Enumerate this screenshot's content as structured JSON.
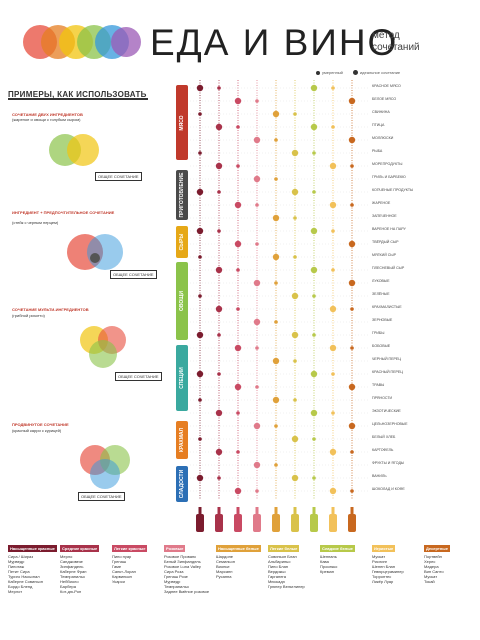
{
  "header": {
    "title": "ЕДА И ВИНО",
    "subtitle_line1": "метод",
    "subtitle_line2": "сочетаний",
    "logo_colors": [
      "#e74c3c",
      "#e67e22",
      "#f1c40f",
      "#8bc34a",
      "#3498db",
      "#9b59b6"
    ]
  },
  "legend": {
    "dot_small": "умеренный",
    "dot_big": "идеальное сочетание"
  },
  "examples": {
    "heading": "ПРИМЕРЫ, КАК ИСПОЛЬЗОВАТЬ",
    "ex1_title": "СОЧЕТАНИЕ ДВУХ ИНГРЕДИЕНТОВ",
    "ex1_sub": "(жареное и овощи с голубым сыром)",
    "ex1_box": "ОБЩЕЕ СОЧЕТАНИЕ",
    "ex2_title": "ИНГРЕДИЕНТ + ПРЕДПОЧТИТЕЛЬНОЕ СОЧЕТАНИЕ",
    "ex2_sub": "(стейк с черным перцем)",
    "ex2_box": "ОБЩЕЕ СОЧЕТАНИЕ",
    "ex3_title": "СОЧЕТАНИЕ МУЛЬТИ-ИНГРЕДИЕНТОВ",
    "ex3_sub": "(грибной ризотто)",
    "ex3_box": "ОБЩЕЕ СОЧЕТАНИЕ",
    "ex4_title": "ПРОДВИНУТОЕ СОЧЕТАНИЕ",
    "ex4_sub": "(красный карри с курицей)",
    "ex4_box": "ОБЩЕЕ СОЧЕТАНИЕ"
  },
  "categories": [
    {
      "label": "МЯСО",
      "color": "#c0392b"
    },
    {
      "label": "ПРИГОТОВЛЕНИЕ",
      "color": "#4a4a4a"
    },
    {
      "label": "СЫРЫ",
      "color": "#e6a817"
    },
    {
      "label": "ОВОЩИ",
      "color": "#8bc34a"
    },
    {
      "label": "СПЕЦИИ",
      "color": "#3aa99f"
    },
    {
      "label": "КРАХМАЛ",
      "color": "#e67e22"
    },
    {
      "label": "СЛАДОСТИ",
      "color": "#2c6fb5"
    }
  ],
  "rows": [
    "КРАСНОЕ МЯСО",
    "БЕЛОЕ МЯСО",
    "СВИНИНА",
    "ПТИЦА",
    "МОЛЛЮСКИ",
    "РЫБА",
    "МОРЕПРОДУКТЫ",
    "ГРИЛЬ И БАРБЕКЮ",
    "КОПЧЕНЫЕ ПРОДУКТЫ",
    "ЖАРЕНОЕ",
    "ЗАПЕЧЕННОЕ",
    "ВАРЕНОЕ НА ПАРУ",
    "ТВЁРДЫЙ СЫР",
    "МЯГКИЙ СЫР",
    "ПЛЕСНЕВЫЙ СЫР",
    "ЛУКОВЫЕ",
    "ЗЕЛЁНЫЕ",
    "КРАХМАЛИСТЫЕ",
    "ЗЕРНОВЫЕ",
    "ГРИБЫ",
    "БОБОВЫЕ",
    "ЧЕРНЫЙ ПЕРЕЦ",
    "КРАСНЫЙ ПЕРЕЦ",
    "ТРАВЫ",
    "ПРЯНОСТИ",
    "ЭКЗОТИЧЕСКИЕ",
    "ЦЕЛЬНОЗЕРНОВЫЕ",
    "БЕЛЫЙ ХЛЕБ",
    "КАРТОФЕЛЬ",
    "ФРУКТЫ И ЯГОДЫ",
    "ВАНИЛЬ",
    "ШОКОЛАД И КОФЕ"
  ],
  "wine_types": [
    {
      "name": "Насыщенные красные",
      "color": "#7b1c2e",
      "items": [
        "Сира / Шираз",
        "Мурведр",
        "Пинотаж",
        "Петит Сира",
        "Туриго Насьонал",
        "Каберне Совиньон",
        "Бордо Бленд",
        "Мерлот"
      ]
    },
    {
      "name": "Средние красные",
      "color": "#a8324a",
      "items": [
        "Мерло",
        "Санджовезе",
        "Зинфандель",
        "Каберне Фран",
        "Темпранильо",
        "Неббиоло",
        "Барбера",
        "Кот-дю-Рон"
      ]
    },
    {
      "name": "Легкие красные",
      "color": "#c94a63",
      "items": [
        "Пино нуар",
        "Гренаш",
        "Гаме",
        "Санкт-Лоран",
        "Карвиньян",
        "Укарси"
      ]
    },
    {
      "name": "Розовые",
      "color": "#e07a8a",
      "items": [
        "Розовое Прованс",
        "Белый Зинфандель",
        "Розовое Luna Valley",
        "Сира Роза",
        "Гренаш Розе",
        "Мурведр",
        "Темпранильо",
        "Заднее Вмёное розовое"
      ]
    },
    {
      "name": "Насыщенные белые",
      "color": "#e0a13a",
      "items": [
        "Шардоне",
        "Семильон",
        "Вионье",
        "Марсанн",
        "Русанна"
      ]
    },
    {
      "name": "Легкие белые",
      "color": "#d9c24a",
      "items": [
        "Совиньон Блан",
        "Альбариньо",
        "Пино Блан",
        "Вердикьо",
        "Гарганега",
        "Мюскадэ",
        "Грюнер Вельтлинер"
      ]
    },
    {
      "name": "Сладкие белые",
      "color": "#b7c94a",
      "items": [
        "Шенпань",
        "Кава",
        "Просекко",
        "Креман"
      ]
    },
    {
      "name": "Игристые",
      "color": "#f2c15a",
      "items": [
        "Мускат",
        "Рислинг",
        "Шенен Блан",
        "Гевюрцтраминер",
        "Торронтес",
        "Ликёр Луар"
      ]
    },
    {
      "name": "Десертные",
      "color": "#c8681f",
      "items": [
        "Портвейн",
        "Херес",
        "Мадера",
        "Вин Санто",
        "Мускат",
        "Токай"
      ]
    }
  ],
  "row_colors": [
    "#7b1c2e",
    "#a8324a",
    "#c94a63",
    "#e07a8a",
    "#e0a13a",
    "#d9c24a",
    "#b7c94a",
    "#f2c15a",
    "#c8681f"
  ]
}
